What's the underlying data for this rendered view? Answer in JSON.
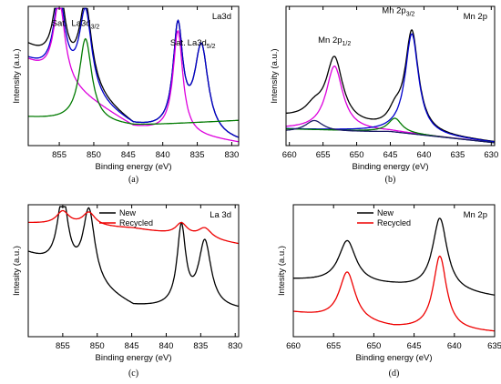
{
  "colors": {
    "black": "#000000",
    "green": "#007a00",
    "blue": "#0000cc",
    "magenta": "#dd00dd",
    "red": "#ee0000",
    "navy": "#1a1a66"
  },
  "chart_data": [
    {
      "id": "a",
      "type": "line",
      "caption": "(a)",
      "panel_title": "La3d",
      "xlabel": "Binding energy (eV)",
      "ylabel": "Intensity (a.u.)",
      "xlim": [
        859.5,
        829.0
      ],
      "ylim": [
        0,
        1
      ],
      "x_reversed": true,
      "xticks": [
        855,
        850,
        845,
        840,
        835,
        830
      ],
      "peak_labels": [
        {
          "text": "Sat.",
          "x": 855.0,
          "y": 0.86
        },
        {
          "text": "La3d",
          "sub": "3/2",
          "x": 851.2,
          "y": 0.86
        },
        {
          "text": "Sat.",
          "x": 837.8,
          "y": 0.72
        },
        {
          "text": "La3d",
          "sub": "5/2",
          "x": 834.4,
          "y": 0.72
        }
      ],
      "series": [
        {
          "role": "experimental",
          "color": "black",
          "peaks": [
            [
              855.0,
              0.58,
              1.0
            ],
            [
              851.2,
              0.6,
              1.1
            ],
            [
              837.8,
              0.74,
              0.85
            ],
            [
              834.4,
              0.63,
              1.2
            ]
          ]
        },
        {
          "role": "fit-envelope",
          "color": "blue",
          "peaks": [
            [
              855.0,
              0.58,
              1.0
            ],
            [
              851.2,
              0.6,
              1.1
            ],
            [
              837.8,
              0.74,
              0.85
            ],
            [
              834.4,
              0.63,
              1.2
            ]
          ]
        },
        {
          "role": "satellite-component",
          "color": "magenta",
          "peaks": [
            [
              855.0,
              0.58,
              1.0
            ],
            [
              837.8,
              0.74,
              0.85
            ]
          ]
        },
        {
          "role": "La3d3/2-component",
          "color": "green",
          "peaks": [
            [
              851.2,
              0.6,
              1.1
            ]
          ]
        }
      ]
    },
    {
      "id": "b",
      "type": "line",
      "caption": "(b)",
      "panel_title": "Mn 2p",
      "xlabel": "Binding energy (eV)",
      "ylabel": "Intensity (a.u.)",
      "xlim": [
        660.5,
        629.5
      ],
      "ylim": [
        0,
        1
      ],
      "x_reversed": true,
      "xticks": [
        660,
        655,
        650,
        645,
        640,
        635,
        630
      ],
      "peak_labels": [
        {
          "text": "Mn 2p",
          "sub": "1/2",
          "x": 653.3,
          "y": 0.74
        },
        {
          "text": "Mn 2p",
          "sub": "3/2",
          "x": 643.8,
          "y": 0.95
        }
      ],
      "series": [
        {
          "role": "experimental",
          "color": "black",
          "peaks": [
            [
              653.3,
              0.46,
              1.5
            ],
            [
              641.8,
              0.72,
              1.2
            ],
            [
              644.3,
              0.1,
              1.2
            ],
            [
              656.3,
              0.08,
              1.6
            ]
          ]
        },
        {
          "role": "Mn2p1/2-component",
          "color": "magenta",
          "peaks": [
            [
              653.3,
              0.46,
              1.5
            ]
          ]
        },
        {
          "role": "Mn2p3/2-component",
          "color": "blue",
          "peaks": [
            [
              641.8,
              0.72,
              1.2
            ]
          ]
        },
        {
          "role": "satellite-component",
          "color": "green",
          "peaks": [
            [
              644.3,
              0.1,
              1.2
            ]
          ]
        },
        {
          "role": "satellite-component-2",
          "color": "navy",
          "peaks": [
            [
              656.3,
              0.08,
              1.6
            ]
          ]
        }
      ]
    },
    {
      "id": "c",
      "type": "line",
      "caption": "(c)",
      "panel_title": "La 3d",
      "xlabel": "Binding energy (eV)",
      "ylabel": "Intesity (a.u.)",
      "xlim": [
        860,
        829.5
      ],
      "ylim": [
        0,
        1
      ],
      "x_reversed": true,
      "xticks": [
        855,
        850,
        845,
        840,
        835,
        830
      ],
      "legend": [
        "New",
        "Recycled"
      ],
      "series": [
        {
          "name": "New",
          "color": "black",
          "peaks": [
            [
              855.0,
              0.55,
              0.95
            ],
            [
              851.2,
              0.55,
              1.05
            ],
            [
              837.8,
              0.6,
              0.75
            ],
            [
              834.4,
              0.5,
              1.1
            ]
          ]
        },
        {
          "name": "Recycled",
          "color": "red",
          "peaks": [
            [
              855.0,
              0.1,
              1.1
            ],
            [
              851.2,
              0.1,
              1.1
            ],
            [
              837.8,
              0.09,
              1.0
            ],
            [
              834.4,
              0.08,
              1.2
            ]
          ]
        }
      ]
    },
    {
      "id": "d",
      "type": "line",
      "caption": "(d)",
      "panel_title": "Mn 2p",
      "xlabel": "Binding energy (eV)",
      "ylabel": "Intesity (a.u.)",
      "xlim": [
        660,
        635
      ],
      "ylim": [
        0,
        1
      ],
      "x_reversed": true,
      "xticks": [
        660,
        655,
        650,
        645,
        640,
        635
      ],
      "legend": [
        "New",
        "Recycled"
      ],
      "series": [
        {
          "name": "New",
          "color": "black",
          "peaks": [
            [
              653.3,
              0.32,
              1.3
            ],
            [
              641.8,
              0.55,
              1.1
            ]
          ]
        },
        {
          "name": "Recycled",
          "color": "red",
          "peaks": [
            [
              653.3,
              0.37,
              1.2
            ],
            [
              641.8,
              0.56,
              1.0
            ]
          ]
        }
      ]
    }
  ]
}
